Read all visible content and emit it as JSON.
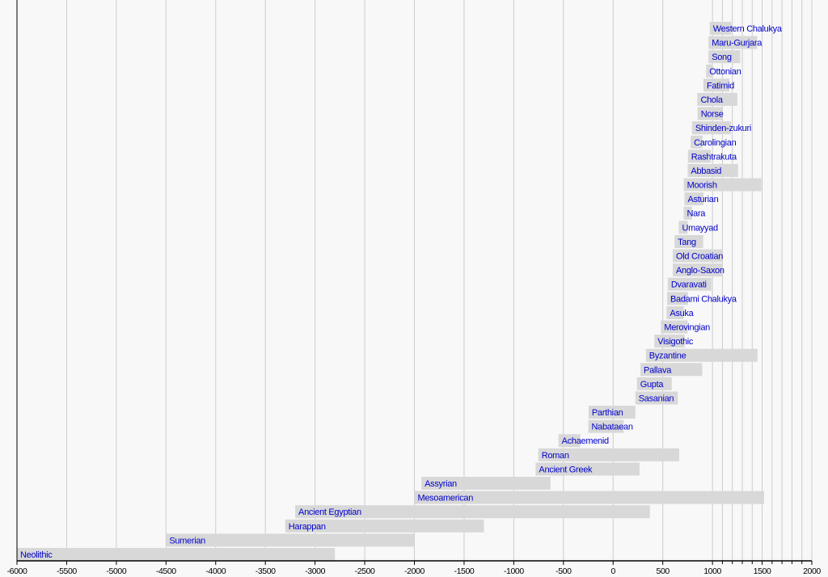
{
  "chart_data": {
    "type": "timeline",
    "title": "",
    "xlabel": "",
    "ylabel": "",
    "xlim": [
      -6000,
      2000
    ],
    "x_ticks": [
      -6000,
      -5500,
      -5000,
      -4500,
      -4000,
      -3500,
      -3000,
      -2500,
      -2000,
      -1500,
      -1000,
      -500,
      0,
      500,
      1000,
      1500,
      2000
    ],
    "minor_grid": {
      "from": 1000,
      "to": 2000,
      "step": 100
    },
    "grid": true,
    "colors": {
      "bar": "#d8d8d8",
      "label": "#0000cc",
      "grid": "#cccccc",
      "background": "#f8f8f8"
    },
    "series": [
      {
        "name": "Western Chalukya",
        "start": 973,
        "end": 1189
      },
      {
        "name": "Maru-Gurjara",
        "start": 960,
        "end": 1450
      },
      {
        "name": "Song",
        "start": 960,
        "end": 1279
      },
      {
        "name": "Ottonian",
        "start": 936,
        "end": 1000
      },
      {
        "name": "Fatimid",
        "start": 909,
        "end": 1171
      },
      {
        "name": "Chola",
        "start": 848,
        "end": 1250
      },
      {
        "name": "Norse",
        "start": 850,
        "end": 1100
      },
      {
        "name": "Shinden-zukuri",
        "start": 794,
        "end": 1185
      },
      {
        "name": "Carolingian",
        "start": 780,
        "end": 900
      },
      {
        "name": "Rashtrakuta",
        "start": 753,
        "end": 982
      },
      {
        "name": "Abbasid",
        "start": 750,
        "end": 1258
      },
      {
        "name": "Moorish",
        "start": 711,
        "end": 1492
      },
      {
        "name": "Asturian",
        "start": 718,
        "end": 910
      },
      {
        "name": "Nara",
        "start": 710,
        "end": 794
      },
      {
        "name": "Umayyad",
        "start": 661,
        "end": 750
      },
      {
        "name": "Tang",
        "start": 618,
        "end": 907
      },
      {
        "name": "Old Croatian",
        "start": 600,
        "end": 1100
      },
      {
        "name": "Anglo-Saxon",
        "start": 600,
        "end": 1100
      },
      {
        "name": "Dvaravati",
        "start": 550,
        "end": 990
      },
      {
        "name": "Badami Chalukya",
        "start": 543,
        "end": 753
      },
      {
        "name": "Asuka",
        "start": 538,
        "end": 710
      },
      {
        "name": "Merovingian",
        "start": 481,
        "end": 751
      },
      {
        "name": "Visigothic",
        "start": 415,
        "end": 721
      },
      {
        "name": "Byzantine",
        "start": 330,
        "end": 1453
      },
      {
        "name": "Pallava",
        "start": 275,
        "end": 897
      },
      {
        "name": "Gupta",
        "start": 240,
        "end": 590
      },
      {
        "name": "Sasanian",
        "start": 224,
        "end": 651
      },
      {
        "name": "Parthian",
        "start": -247,
        "end": 224
      },
      {
        "name": "Nabataean",
        "start": -250,
        "end": 106
      },
      {
        "name": "Achaemenid",
        "start": -550,
        "end": -330
      },
      {
        "name": "Roman",
        "start": -753,
        "end": 665
      },
      {
        "name": "Ancient Greek",
        "start": -780,
        "end": 266
      },
      {
        "name": "Assyrian",
        "start": -1930,
        "end": -630
      },
      {
        "name": "Mesoamerican",
        "start": -2000,
        "end": 1519
      },
      {
        "name": "Ancient Egyptian",
        "start": -3200,
        "end": 370
      },
      {
        "name": "Harappan",
        "start": -3300,
        "end": -1300
      },
      {
        "name": "Sumerian",
        "start": -4500,
        "end": -2000
      },
      {
        "name": "Neolithic",
        "start": -6000,
        "end": -2800
      }
    ]
  }
}
